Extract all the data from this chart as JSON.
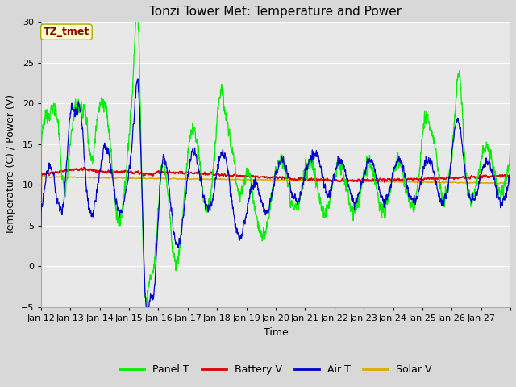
{
  "title": "Tonzi Tower Met: Temperature and Power",
  "xlabel": "Time",
  "ylabel": "Temperature (C) / Power (V)",
  "ylim": [
    -5,
    30
  ],
  "yticks": [
    -5,
    0,
    5,
    10,
    15,
    20,
    25,
    30
  ],
  "x_labels": [
    "Jan 12",
    "Jan 13",
    "Jan 14",
    "Jan 15",
    "Jan 16",
    "Jan 17",
    "Jan 18",
    "Jan 19",
    "Jan 20",
    "Jan 21",
    "Jan 22",
    "Jan 23",
    "Jan 24",
    "Jan 25",
    "Jan 26",
    "Jan 27"
  ],
  "n_days": 16,
  "annotation_text": "TZ_tmet",
  "annotation_bg": "#ffffcc",
  "annotation_border": "#aaa800",
  "annotation_text_color": "#880000",
  "legend_labels": [
    "Panel T",
    "Battery V",
    "Air T",
    "Solar V"
  ],
  "line_colors": [
    "#00ee00",
    "#dd0000",
    "#0000cc",
    "#ddaa00"
  ],
  "plot_bg": "#e8e8e8",
  "fig_bg": "#d8d8d8",
  "grid_color": "#ffffff",
  "title_fontsize": 11,
  "axis_fontsize": 9,
  "tick_fontsize": 8,
  "legend_fontsize": 9,
  "seed": 12345,
  "pts_per_day": 144
}
